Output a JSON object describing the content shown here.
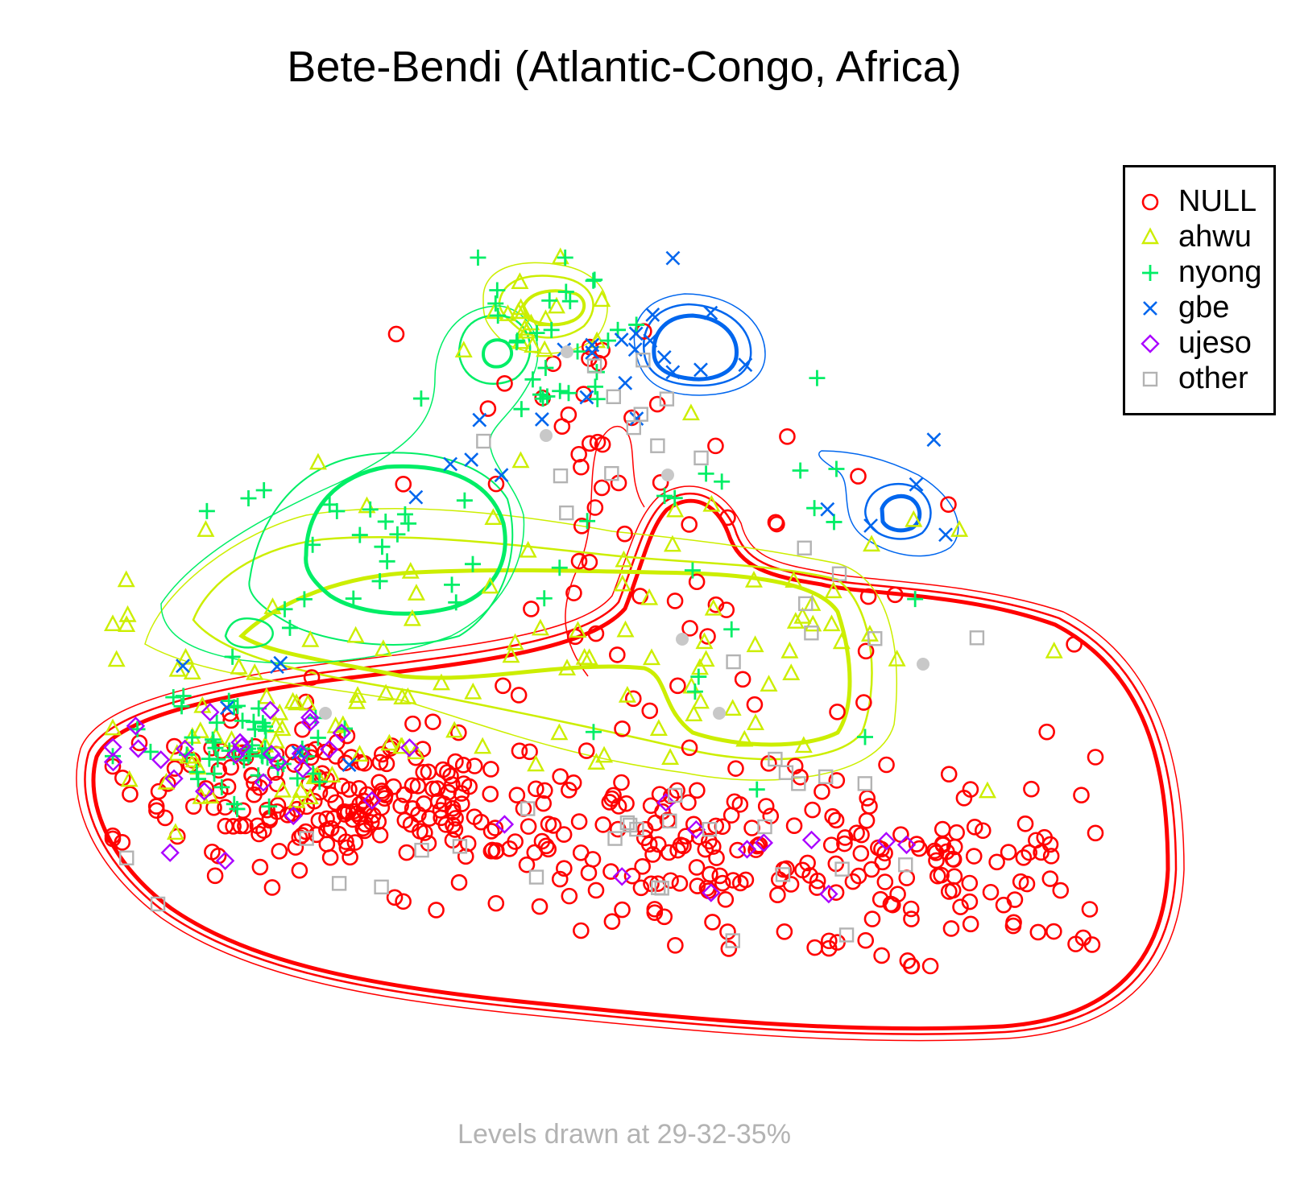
{
  "chart_data": {
    "type": "scatter",
    "title": "Bete-Bendi (Atlantic-Congo, Africa)",
    "footnote": "Levels drawn at 29-32-35%",
    "xlabel": "",
    "ylabel": "",
    "grid": false,
    "legend_position": "top-right",
    "contour_levels_percent": [
      29,
      32,
      35
    ],
    "series": [
      {
        "name": "NULL",
        "marker": "circle",
        "color": "#ff0000"
      },
      {
        "name": "ahwu",
        "marker": "triangle",
        "color": "#ccee00"
      },
      {
        "name": "nyong",
        "marker": "plus",
        "color": "#00ee66"
      },
      {
        "name": "gbe",
        "marker": "cross",
        "color": "#0066ee"
      },
      {
        "name": "ujeso",
        "marker": "diamond",
        "color": "#aa00ff"
      },
      {
        "name": "other",
        "marker": "square",
        "color": "#b3b3b3"
      }
    ]
  }
}
